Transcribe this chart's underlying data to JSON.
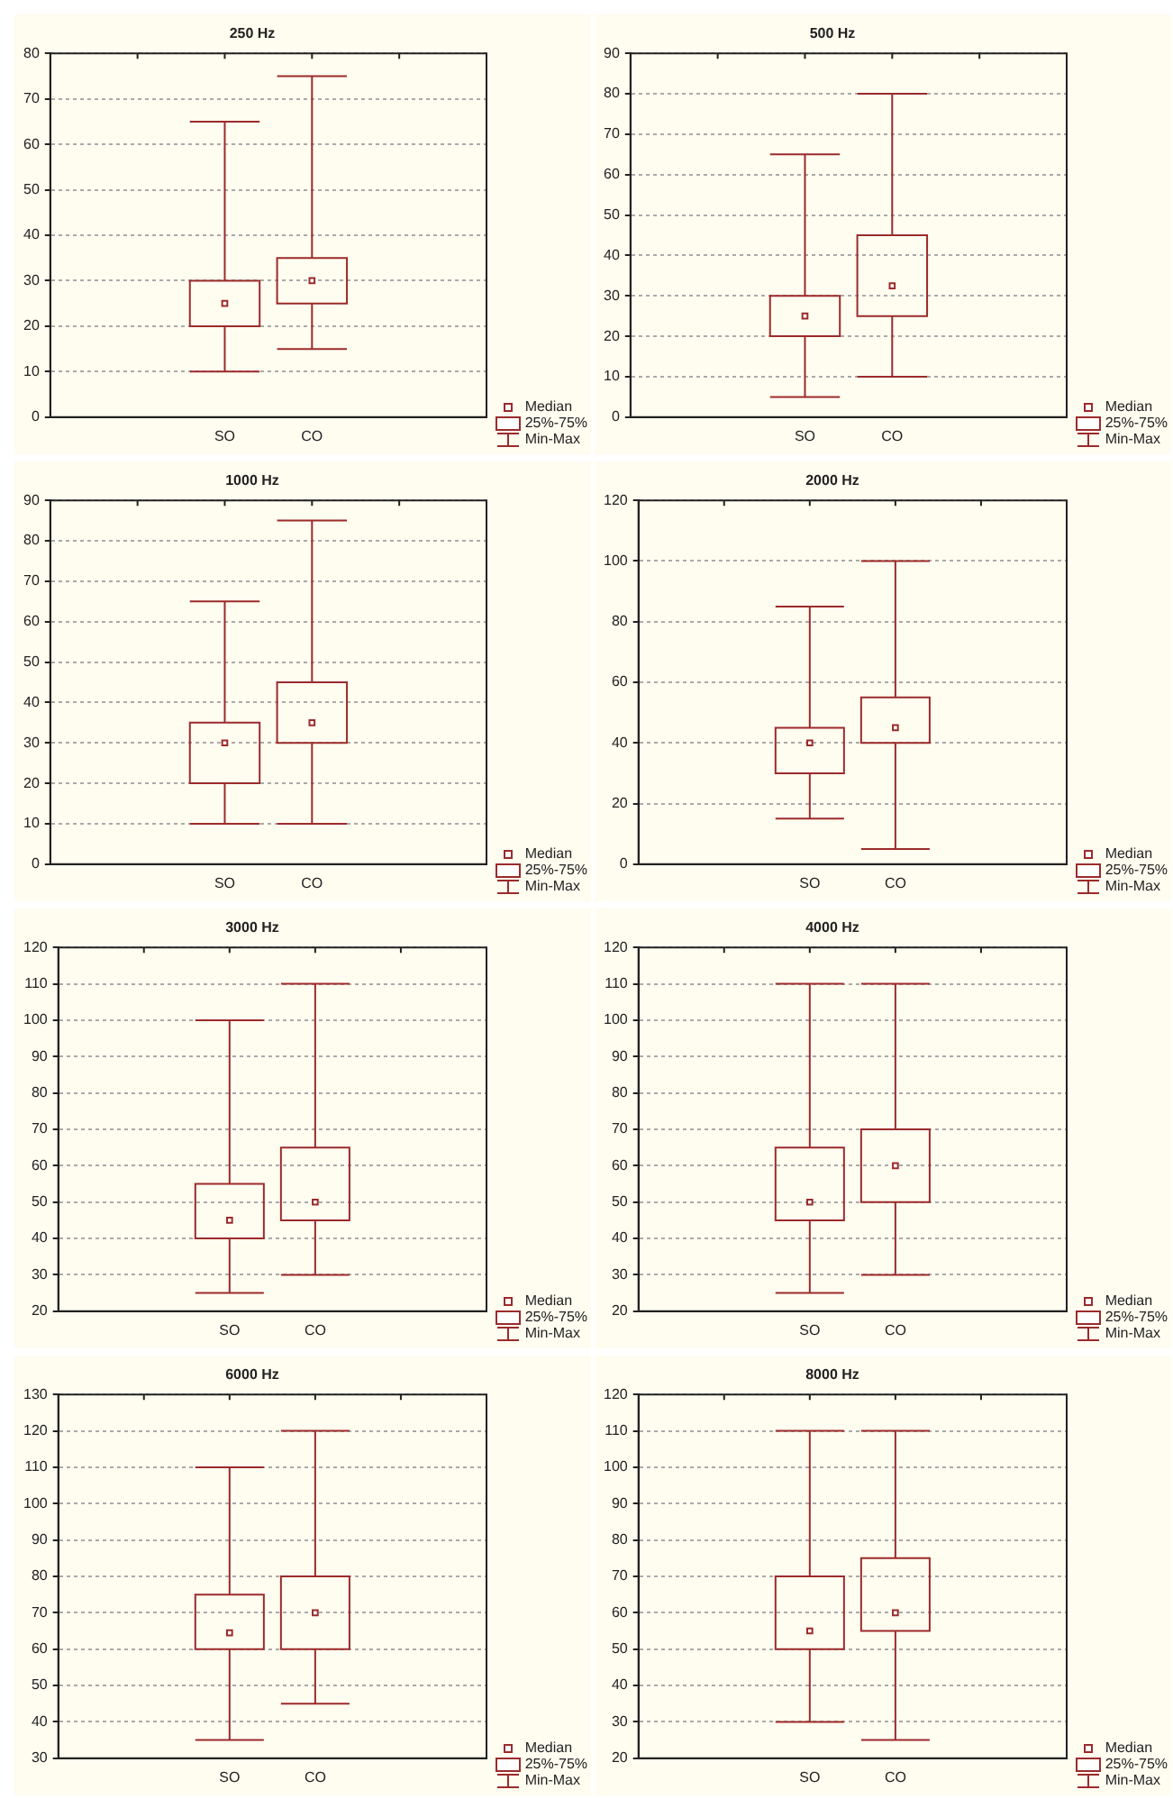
{
  "chart_data": [
    {
      "type": "box",
      "title": "250 Hz",
      "categories": [
        "SO",
        "CO"
      ],
      "color": "#9b2b2b",
      "marker": "square",
      "grid": "y",
      "ylim": [
        0,
        80
      ],
      "yticks": [
        0,
        10,
        20,
        30,
        40,
        50,
        60,
        70,
        80
      ],
      "annotations": [
        "Median",
        "25%-75%",
        "Min-Max"
      ],
      "boxes": [
        {
          "low": 10,
          "q1": 20,
          "median": 25,
          "q3": 30,
          "high": 65
        },
        {
          "low": 15,
          "q1": 25,
          "median": 30,
          "q3": 35,
          "high": 75
        }
      ]
    },
    {
      "type": "box",
      "title": "500 Hz",
      "categories": [
        "SO",
        "CO"
      ],
      "color": "#9b2b2b",
      "marker": "square",
      "grid": "y",
      "ylim": [
        0,
        90
      ],
      "yticks": [
        0,
        10,
        20,
        30,
        40,
        50,
        60,
        70,
        80,
        90
      ],
      "annotations": [
        "Median",
        "25%-75%",
        "Min-Max"
      ],
      "boxes": [
        {
          "low": 5,
          "q1": 20,
          "median": 25,
          "q3": 30,
          "high": 65
        },
        {
          "low": 10,
          "q1": 25,
          "median": 32.5,
          "q3": 45,
          "high": 80
        }
      ]
    },
    {
      "type": "box",
      "title": "1000 Hz",
      "categories": [
        "SO",
        "CO"
      ],
      "color": "#9b2b2b",
      "marker": "square",
      "grid": "y",
      "ylim": [
        0,
        90
      ],
      "yticks": [
        0,
        10,
        20,
        30,
        40,
        50,
        60,
        70,
        80,
        90
      ],
      "annotations": [
        "Median",
        "25%-75%",
        "Min-Max"
      ],
      "boxes": [
        {
          "low": 10,
          "q1": 20,
          "median": 30,
          "q3": 35,
          "high": 65
        },
        {
          "low": 10,
          "q1": 30,
          "median": 35,
          "q3": 45,
          "high": 85
        }
      ]
    },
    {
      "type": "box",
      "title": "2000 Hz",
      "categories": [
        "SO",
        "CO"
      ],
      "color": "#9b2b2b",
      "marker": "square",
      "grid": "y",
      "ylim": [
        0,
        120
      ],
      "yticks": [
        0,
        20,
        40,
        60,
        80,
        100,
        120
      ],
      "annotations": [
        "Median",
        "25%-75%",
        "Min-Max"
      ],
      "boxes": [
        {
          "low": 15,
          "q1": 30,
          "median": 40,
          "q3": 45,
          "high": 85
        },
        {
          "low": 5,
          "q1": 40,
          "median": 45,
          "q3": 55,
          "high": 100
        }
      ]
    },
    {
      "type": "box",
      "title": "3000 Hz",
      "categories": [
        "SO",
        "CO"
      ],
      "color": "#9b2b2b",
      "marker": "square",
      "grid": "y",
      "ylim": [
        20,
        120
      ],
      "yticks": [
        20,
        30,
        40,
        50,
        60,
        70,
        80,
        90,
        100,
        110,
        120
      ],
      "annotations": [
        "Median",
        "25%-75%",
        "Min-Max"
      ],
      "boxes": [
        {
          "low": 25,
          "q1": 40,
          "median": 45,
          "q3": 55,
          "high": 100
        },
        {
          "low": 30,
          "q1": 45,
          "median": 50,
          "q3": 65,
          "high": 110
        }
      ]
    },
    {
      "type": "box",
      "title": "4000 Hz",
      "categories": [
        "SO",
        "CO"
      ],
      "color": "#9b2b2b",
      "marker": "square",
      "grid": "y",
      "ylim": [
        20,
        120
      ],
      "yticks": [
        20,
        30,
        40,
        50,
        60,
        70,
        80,
        90,
        100,
        110,
        120
      ],
      "annotations": [
        "Median",
        "25%-75%",
        "Min-Max"
      ],
      "boxes": [
        {
          "low": 25,
          "q1": 45,
          "median": 50,
          "q3": 65,
          "high": 110
        },
        {
          "low": 30,
          "q1": 50,
          "median": 60,
          "q3": 70,
          "high": 110
        }
      ]
    },
    {
      "type": "box",
      "title": "6000 Hz",
      "categories": [
        "SO",
        "CO"
      ],
      "color": "#9b2b2b",
      "marker": "square",
      "grid": "y",
      "ylim": [
        30,
        130
      ],
      "yticks": [
        30,
        40,
        50,
        60,
        70,
        80,
        90,
        100,
        110,
        120,
        130
      ],
      "annotations": [
        "Median",
        "25%-75%",
        "Min-Max"
      ],
      "boxes": [
        {
          "low": 35,
          "q1": 60,
          "median": 64.5,
          "q3": 75,
          "high": 110
        },
        {
          "low": 45,
          "q1": 60,
          "median": 70,
          "q3": 80,
          "high": 120
        }
      ]
    },
    {
      "type": "box",
      "title": "8000 Hz",
      "categories": [
        "SO",
        "CO"
      ],
      "color": "#9b2b2b",
      "marker": "square",
      "grid": "y",
      "ylim": [
        20,
        120
      ],
      "yticks": [
        20,
        30,
        40,
        50,
        60,
        70,
        80,
        90,
        100,
        110,
        120
      ],
      "annotations": [
        "Median",
        "25%-75%",
        "Min-Max"
      ],
      "boxes": [
        {
          "low": 30,
          "q1": 50,
          "median": 55,
          "q3": 70,
          "high": 110
        },
        {
          "low": 25,
          "q1": 55,
          "median": 60,
          "q3": 75,
          "high": 110
        }
      ]
    }
  ]
}
